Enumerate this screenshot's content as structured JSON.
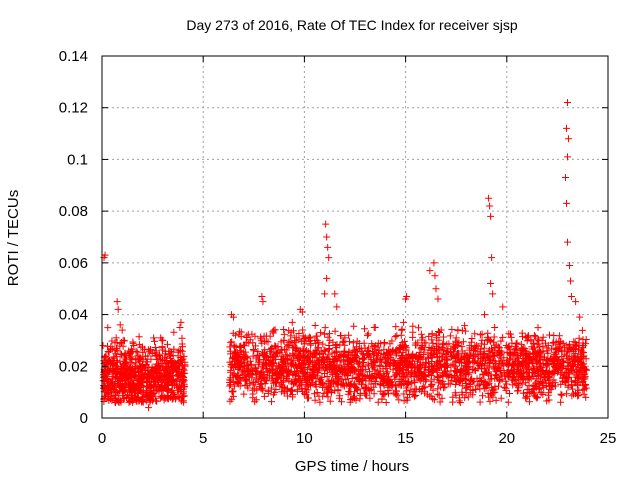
{
  "chart_data": {
    "type": "scatter",
    "title": "Day 273 of 2016, Rate Of TEC Index for receiver sjsp",
    "xlabel": "GPS time / hours",
    "ylabel": "ROTI / TECUs",
    "xlim": [
      0,
      25
    ],
    "ylim": [
      0,
      0.14
    ],
    "x_ticks": [
      0,
      5,
      10,
      15,
      20,
      25
    ],
    "y_ticks": [
      0,
      0.02,
      0.04,
      0.06,
      0.08,
      0.1,
      0.12,
      0.14
    ],
    "x_tick_labels": [
      "0",
      "5",
      "10",
      "15",
      "20",
      "25"
    ],
    "y_tick_labels": [
      "0",
      "0.02",
      "0.04",
      "0.06",
      "0.08",
      "0.1",
      "0.12",
      "0.14"
    ],
    "grid": true,
    "marker": "+",
    "marker_color": "#ff0000",
    "points": [
      [
        0.05,
        0.028
      ],
      [
        0.1,
        0.062
      ],
      [
        0.15,
        0.063
      ],
      [
        0.2,
        0.024
      ],
      [
        0.3,
        0.021
      ],
      [
        0.35,
        0.018
      ],
      [
        0.5,
        0.016
      ],
      [
        0.6,
        0.011
      ],
      [
        0.7,
        0.031
      ],
      [
        0.75,
        0.045
      ],
      [
        0.8,
        0.042
      ],
      [
        0.9,
        0.036
      ],
      [
        1.0,
        0.034
      ],
      [
        1.05,
        0.03
      ],
      [
        1.1,
        0.024
      ],
      [
        1.2,
        0.016
      ],
      [
        1.4,
        0.013
      ],
      [
        1.6,
        0.012
      ],
      [
        1.8,
        0.018
      ],
      [
        2.0,
        0.014
      ],
      [
        2.2,
        0.009
      ],
      [
        2.3,
        0.004
      ],
      [
        2.5,
        0.017
      ],
      [
        2.8,
        0.021
      ],
      [
        2.9,
        0.031
      ],
      [
        3.0,
        0.03
      ],
      [
        3.2,
        0.022
      ],
      [
        3.5,
        0.019
      ],
      [
        3.8,
        0.026
      ],
      [
        3.85,
        0.035
      ],
      [
        3.9,
        0.037
      ],
      [
        4.0,
        0.014
      ],
      [
        6.4,
        0.04
      ],
      [
        6.5,
        0.039
      ],
      [
        6.6,
        0.032
      ],
      [
        7.0,
        0.023
      ],
      [
        7.5,
        0.026
      ],
      [
        7.9,
        0.047
      ],
      [
        7.95,
        0.045
      ],
      [
        8.5,
        0.024
      ],
      [
        9.0,
        0.03
      ],
      [
        9.4,
        0.037
      ],
      [
        9.8,
        0.042
      ],
      [
        9.9,
        0.041
      ],
      [
        10.3,
        0.031
      ],
      [
        10.5,
        0.025
      ],
      [
        10.8,
        0.033
      ],
      [
        11.05,
        0.075
      ],
      [
        11.1,
        0.07
      ],
      [
        11.15,
        0.066
      ],
      [
        11.2,
        0.062
      ],
      [
        11.1,
        0.054
      ],
      [
        11.0,
        0.048
      ],
      [
        11.5,
        0.048
      ],
      [
        11.6,
        0.043
      ],
      [
        12.0,
        0.031
      ],
      [
        12.5,
        0.026
      ],
      [
        13.0,
        0.027
      ],
      [
        13.5,
        0.035
      ],
      [
        14.0,
        0.024
      ],
      [
        14.5,
        0.021
      ],
      [
        14.9,
        0.037
      ],
      [
        15.0,
        0.046
      ],
      [
        15.05,
        0.047
      ],
      [
        15.5,
        0.029
      ],
      [
        16.0,
        0.029
      ],
      [
        16.2,
        0.057
      ],
      [
        16.4,
        0.06
      ],
      [
        16.45,
        0.055
      ],
      [
        16.5,
        0.05
      ],
      [
        16.6,
        0.046
      ],
      [
        17.0,
        0.021
      ],
      [
        17.5,
        0.031
      ],
      [
        18.0,
        0.024
      ],
      [
        18.5,
        0.028
      ],
      [
        18.9,
        0.04
      ],
      [
        19.1,
        0.085
      ],
      [
        19.15,
        0.082
      ],
      [
        19.2,
        0.078
      ],
      [
        19.25,
        0.062
      ],
      [
        19.2,
        0.052
      ],
      [
        19.3,
        0.048
      ],
      [
        19.4,
        0.035
      ],
      [
        19.8,
        0.043
      ],
      [
        20.0,
        0.021
      ],
      [
        20.5,
        0.027
      ],
      [
        21.0,
        0.025
      ],
      [
        21.5,
        0.025
      ],
      [
        22.0,
        0.021
      ],
      [
        22.5,
        0.019
      ],
      [
        22.8,
        0.022
      ],
      [
        22.9,
        0.093
      ],
      [
        22.95,
        0.112
      ],
      [
        23.0,
        0.122
      ],
      [
        23.05,
        0.108
      ],
      [
        23.0,
        0.101
      ],
      [
        22.95,
        0.083
      ],
      [
        23.0,
        0.068
      ],
      [
        23.1,
        0.059
      ],
      [
        23.15,
        0.053
      ],
      [
        23.2,
        0.047
      ],
      [
        23.4,
        0.045
      ],
      [
        23.6,
        0.039
      ],
      [
        23.8,
        0.028
      ],
      [
        23.85,
        0.017
      ],
      [
        23.9,
        0.008
      ]
    ]
  }
}
